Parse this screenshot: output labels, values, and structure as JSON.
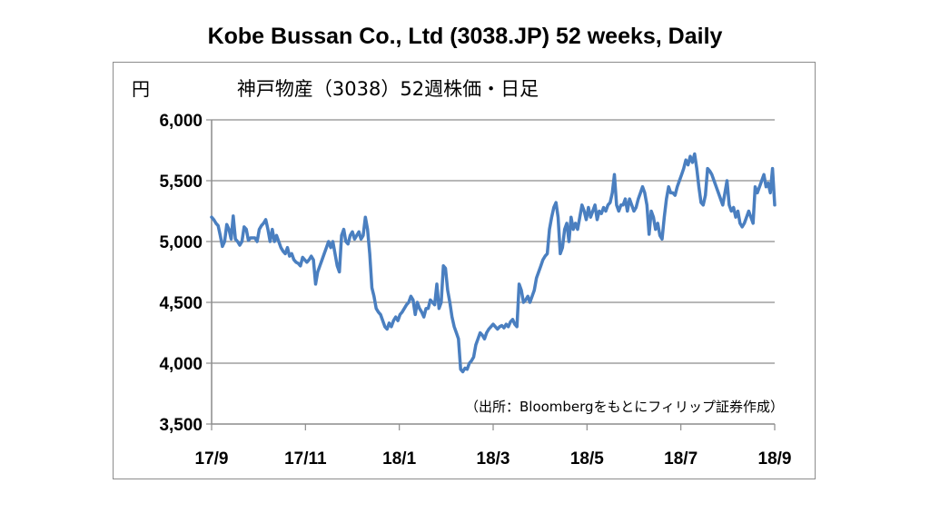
{
  "title": "Kobe Bussan Co., Ltd (3038.JP) 52 weeks, Daily",
  "chart_data": {
    "type": "line",
    "title": "Kobe Bussan Co., Ltd (3038.JP) 52 weeks, Daily",
    "subtitle": "神戸物産（3038）52週株価・日足",
    "ylabel": "円",
    "xlabel": "",
    "source": "（出所：Bloombergをもとにフィリップ証券作成）",
    "ylim": [
      3500,
      6000
    ],
    "yticks": [
      3500,
      4000,
      4500,
      5000,
      5500,
      6000
    ],
    "ytick_labels": [
      "3,500",
      "4,000",
      "4,500",
      "5,000",
      "5,500",
      "6,000"
    ],
    "xticks": [
      "17/9",
      "17/11",
      "18/1",
      "18/3",
      "18/5",
      "18/7",
      "18/9"
    ],
    "grid": true,
    "line_color": "#4a7fc0",
    "series": [
      {
        "values": [
          5200,
          5180,
          5150,
          5130,
          5050,
          4960,
          5000,
          5140,
          5100,
          5020,
          5210,
          5020,
          5000,
          4970,
          5000,
          5120,
          5100,
          5010,
          5030,
          5030,
          5030,
          5000,
          5100,
          5130,
          5150,
          5180,
          5100,
          5000,
          5100,
          5000,
          5050,
          5000,
          4950,
          4920,
          4900,
          4950,
          4880,
          4900,
          4850,
          4830,
          4820,
          4800,
          4870,
          4850,
          4830,
          4850,
          4880,
          4850,
          4650,
          4750,
          4800,
          4850,
          4900,
          4950,
          5000,
          4950,
          5000,
          4900,
          4800,
          4750,
          5050,
          5100,
          5000,
          4980,
          5050,
          5080,
          5020,
          5050,
          5080,
          5020,
          5050,
          5200,
          5100,
          4900,
          4620,
          4550,
          4450,
          4420,
          4400,
          4350,
          4300,
          4280,
          4330,
          4300,
          4350,
          4380,
          4350,
          4400,
          4420,
          4450,
          4480,
          4500,
          4550,
          4520,
          4400,
          4500,
          4450,
          4420,
          4380,
          4450,
          4450,
          4520,
          4500,
          4480,
          4650,
          4450,
          4500,
          4800,
          4780,
          4600,
          4500,
          4380,
          4300,
          4250,
          4200,
          3950,
          3930,
          3960,
          3950,
          4000,
          4020,
          4050,
          4150,
          4200,
          4250,
          4230,
          4200,
          4250,
          4280,
          4300,
          4320,
          4300,
          4280,
          4300,
          4310,
          4290,
          4320,
          4300,
          4340,
          4360,
          4320,
          4300,
          4650,
          4600,
          4500,
          4520,
          4550,
          4500,
          4550,
          4600,
          4700,
          4750,
          4800,
          4850,
          4880,
          4900,
          5100,
          5200,
          5280,
          5320,
          5200,
          4900,
          4950,
          5100,
          5150,
          5000,
          5200,
          5100,
          5150,
          5100,
          5200,
          5300,
          5250,
          5180,
          5280,
          5200,
          5250,
          5300,
          5180,
          5250,
          5230,
          5280,
          5250,
          5300,
          5320,
          5400,
          5550,
          5300,
          5250,
          5300,
          5300,
          5350,
          5250,
          5350,
          5300,
          5250,
          5280,
          5350,
          5400,
          5450,
          5400,
          5300,
          5060,
          5250,
          5200,
          5100,
          5150,
          5050,
          5020,
          5200,
          5350,
          5450,
          5400,
          5400,
          5380,
          5450,
          5500,
          5550,
          5600,
          5670,
          5630,
          5700,
          5650,
          5720,
          5600,
          5450,
          5320,
          5300,
          5380,
          5600,
          5580,
          5550,
          5500,
          5450,
          5400,
          5350,
          5300,
          5400,
          5500,
          5300,
          5250,
          5280,
          5200,
          5250,
          5150,
          5120,
          5150,
          5200,
          5250,
          5200,
          5150,
          5450,
          5400,
          5450,
          5500,
          5550,
          5450,
          5480,
          5400,
          5600,
          5300
        ]
      }
    ]
  }
}
